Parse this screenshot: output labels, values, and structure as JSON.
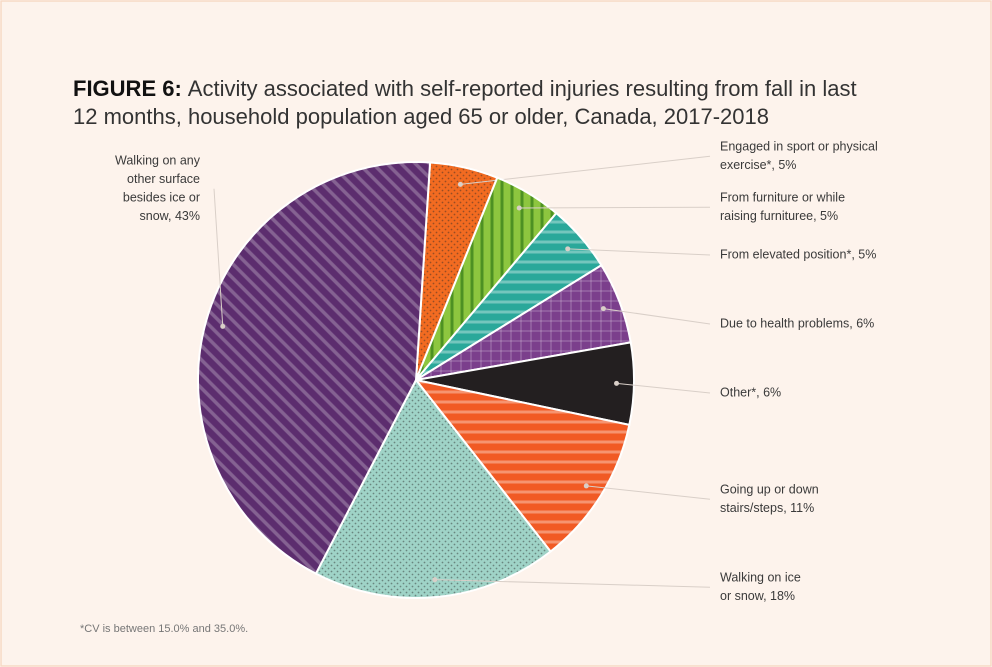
{
  "title_prefix": "FIGURE 6:",
  "title_lines": [
    "Activity associated with self-reported injuries resulting from fall in last",
    "12 months, household population aged 65 or older, Canada, 2017-2018"
  ],
  "footnote": "*CV is between 15.0% and 35.0%.",
  "chart_data": {
    "type": "pie",
    "labels": [
      [
        "Engaged in sport or physical",
        "exercise*, 5%"
      ],
      [
        "From furniture or while",
        "raising furnituree, 5%"
      ],
      [
        "From elevated position*, 5%"
      ],
      [
        "Due to health problems, 6%"
      ],
      [
        "Other*, 6%"
      ],
      [
        "Going up or down",
        "stairs/steps, 11%"
      ],
      [
        "Walking on ice",
        "or snow, 18%"
      ],
      [
        "Walking on any",
        "other surface",
        "besides ice or",
        "snow, 43%"
      ]
    ],
    "values": [
      5,
      5,
      5,
      6,
      6,
      11,
      18,
      43
    ],
    "colors": [
      "#f26b21",
      "#8dc63f",
      "#2aa89a",
      "#7b3f8c",
      "#231f20",
      "#f15a24",
      "#9fd3c7",
      "#5c2d6e"
    ],
    "patterns": [
      "dots",
      "vertical",
      "horizontal",
      "grid",
      "solid",
      "horizontal",
      "dots",
      "diagonal"
    ]
  }
}
